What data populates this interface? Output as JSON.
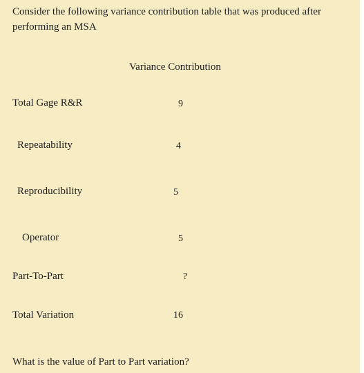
{
  "intro": "Consider the following  variance contribution table that was produced after performing an MSA",
  "table": {
    "column_header": "Variance Contribution",
    "rows": [
      {
        "label": "Total Gage R&R",
        "value": "9"
      },
      {
        "label": "Repeatability",
        "value": "4"
      },
      {
        "label": "Reproducibility",
        "value": "5"
      },
      {
        "label": "Operator",
        "value": "5"
      },
      {
        "label": "Part-To-Part",
        "value": "?"
      },
      {
        "label": "Total Variation",
        "value": "16"
      }
    ]
  },
  "question": "What is the value of Part to Part variation?"
}
